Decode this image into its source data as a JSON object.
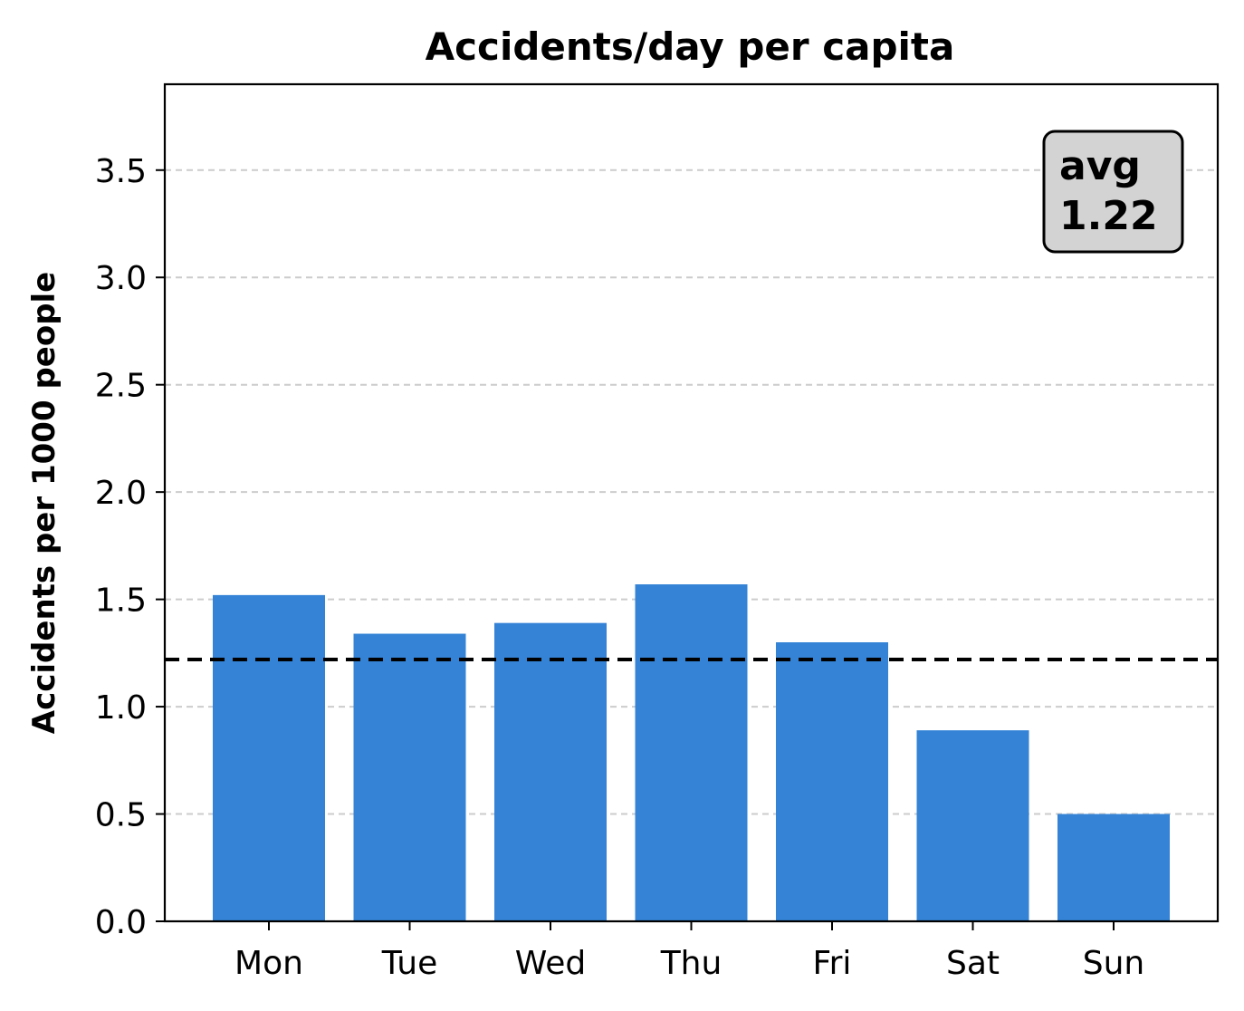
{
  "chart_data": {
    "type": "bar",
    "title": "Accidents/day per capita",
    "xlabel": "",
    "ylabel": "Accidents per 1000 people",
    "categories": [
      "Mon",
      "Tue",
      "Wed",
      "Thu",
      "Fri",
      "Sat",
      "Sun"
    ],
    "values": [
      1.52,
      1.34,
      1.39,
      1.57,
      1.3,
      0.89,
      0.5
    ],
    "ylim": [
      0,
      3.9
    ],
    "yticks": [
      0.0,
      0.5,
      1.0,
      1.5,
      2.0,
      2.5,
      3.0,
      3.5
    ],
    "ytick_labels": [
      "0.0",
      "0.5",
      "1.0",
      "1.5",
      "2.0",
      "2.5",
      "3.0",
      "3.5"
    ],
    "grid": "y, dashed",
    "bar_color": "#3483d6",
    "reference_line": {
      "value": 1.22,
      "style": "dashed",
      "color": "#000000"
    },
    "annotation": {
      "line1": "avg",
      "line2": "1.22",
      "placement": "top-right"
    }
  }
}
